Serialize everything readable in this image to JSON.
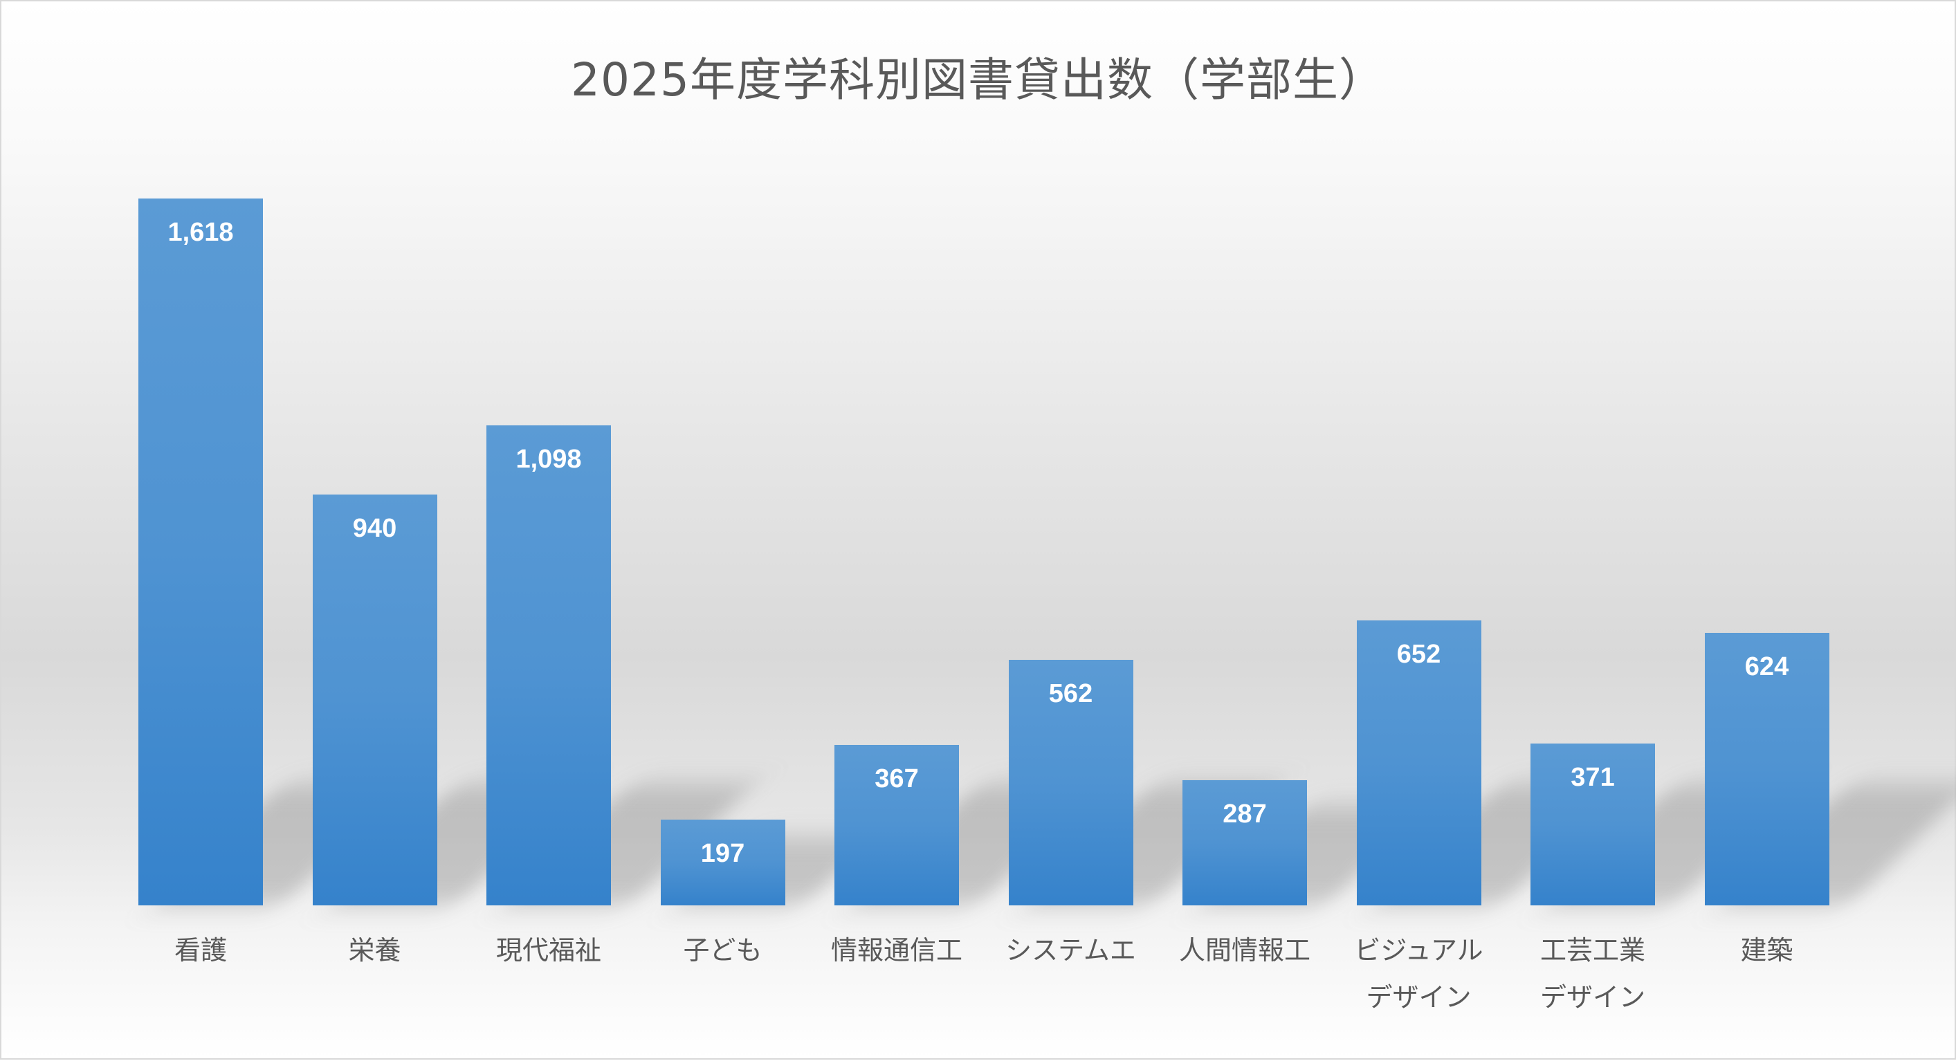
{
  "chart": {
    "title": "2025年度学科別図書貸出数（学部生）",
    "bar_color_top": "#5b9bd5",
    "bar_color_bottom": "#3582cb",
    "label_color": "#ffffff",
    "axis_text_color": "#595959"
  },
  "bars": [
    {
      "category": "看護",
      "value_label": "1,618"
    },
    {
      "category": "栄養",
      "value_label": "940"
    },
    {
      "category": "現代福祉",
      "value_label": "1,098"
    },
    {
      "category": "子ども",
      "value_label": "197"
    },
    {
      "category": "情報通信工",
      "value_label": "367"
    },
    {
      "category": "システムエ",
      "value_label": "562"
    },
    {
      "category": "人間情報工",
      "value_label": "287"
    },
    {
      "category": "ビジュアル\nデザイン",
      "value_label": "652"
    },
    {
      "category": "工芸工業\nデザイン",
      "value_label": "371"
    },
    {
      "category": "建築",
      "value_label": "624"
    }
  ],
  "chart_data": {
    "type": "bar",
    "title": "2025年度学科別図書貸出数（学部生）",
    "categories": [
      "看護",
      "栄養",
      "現代福祉",
      "子ども",
      "情報通信工",
      "システムエ",
      "人間情報工",
      "ビジュアルデザイン",
      "工芸工業デザイン",
      "建築"
    ],
    "values": [
      1618,
      940,
      1098,
      197,
      367,
      562,
      287,
      652,
      371,
      624
    ],
    "xlabel": "",
    "ylabel": "",
    "ylim": [
      0,
      1618
    ],
    "grid": false,
    "legend": "none",
    "data_labels": "inside_end"
  }
}
